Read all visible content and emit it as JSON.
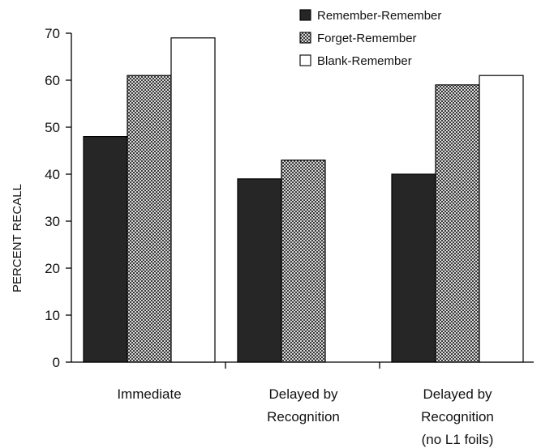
{
  "chart_data": {
    "type": "bar",
    "title": "",
    "ylabel": "PERCENT RECALL",
    "xlabel": "",
    "ylim": [
      0,
      70
    ],
    "yticks": [
      0,
      10,
      20,
      30,
      40,
      50,
      60,
      70
    ],
    "grid": false,
    "legend_position": "top-right",
    "categories": [
      [
        "Immediate"
      ],
      [
        "Delayed by",
        "Recognition"
      ],
      [
        "Delayed by",
        "Recognition",
        "(no L1 foils)"
      ]
    ],
    "series": [
      {
        "name": "Remember-Remember",
        "values": [
          48,
          39,
          40
        ],
        "fill": "dark"
      },
      {
        "name": "Forget-Remember",
        "values": [
          61,
          43,
          59
        ],
        "fill": "checker"
      },
      {
        "name": "Blank-Remember",
        "values": [
          69,
          null,
          61
        ],
        "fill": "white"
      }
    ],
    "colors": {
      "dark": "#262626",
      "checker_dark": "#3a3a3a",
      "checker_light": "#d8d8d8",
      "white": "#ffffff",
      "stroke": "#000000"
    }
  }
}
